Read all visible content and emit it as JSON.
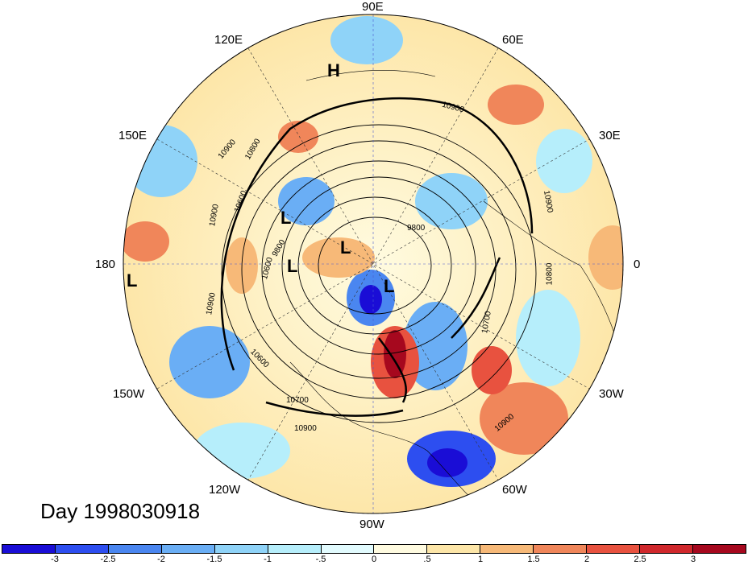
{
  "map": {
    "projection": "north-polar-stereographic",
    "variable_note": "",
    "day_label": "Day 1998030918",
    "longitude_labels": {
      "lon_90E": "90E",
      "lon_60E": "60E",
      "lon_30E": "30E",
      "lon_0": "0",
      "lon_30W": "30W",
      "lon_60W": "60W",
      "lon_90W": "90W",
      "lon_120W": "120W",
      "lon_150W": "150W",
      "lon_180": "180",
      "lon_150E": "150E",
      "lon_120E": "120E"
    },
    "pressure_systems": [
      {
        "type": "H",
        "text": "H"
      },
      {
        "type": "L",
        "text": "L"
      },
      {
        "type": "L",
        "text": "L"
      },
      {
        "type": "L",
        "text": "L"
      },
      {
        "type": "L",
        "text": "L"
      },
      {
        "type": "L",
        "text": "L"
      }
    ],
    "contour_labels": [
      "10900",
      "10900",
      "10900",
      "10800",
      "10800",
      "10700",
      "10700",
      "10600",
      "10600",
      "10600",
      "9800",
      "9800",
      "10900",
      "10900",
      "10900",
      "10900"
    ]
  },
  "colorbar": {
    "colors": [
      "#1a0dd6",
      "#2d4ef0",
      "#4a86f0",
      "#6aaef5",
      "#8fd3f8",
      "#b6eefb",
      "#e2fbfe",
      "#fffbe0",
      "#fde6a8",
      "#f7b978",
      "#f0865a",
      "#e8523f",
      "#d0282c",
      "#a6081e"
    ],
    "ticks": [
      "-3",
      "-2.5",
      "-2",
      "-1.5",
      "-1",
      "-.5",
      "0",
      ".5",
      "1",
      "1.5",
      "2",
      "2.5",
      "3"
    ]
  }
}
